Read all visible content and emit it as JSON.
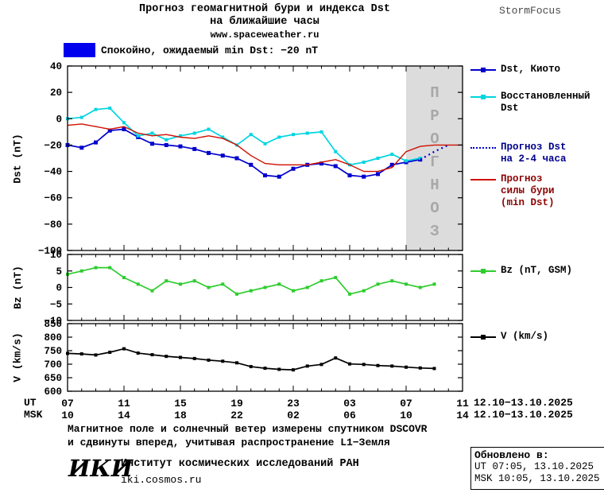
{
  "header": {
    "title_line1": "Прогноз геомагнитной бури и индекса Dst",
    "title_line2": "на ближайшие часы",
    "site": "www.spaceweather.ru",
    "brand": "StormFocus"
  },
  "top_legend": {
    "color": "#0000ee",
    "text": "Спокойно, ожидаемый min Dst: −20 nT"
  },
  "axes": {
    "ut_label": "UT",
    "msk_label": "MSK",
    "ut_ticks": [
      "07",
      "11",
      "15",
      "19",
      "23",
      "03",
      "07",
      "11"
    ],
    "msk_ticks": [
      "10",
      "14",
      "18",
      "22",
      "02",
      "06",
      "10",
      "14"
    ],
    "ut_date": "12.10−13.10.2025",
    "msk_date": "12.10−13.10.2025"
  },
  "chart_data": [
    {
      "type": "line",
      "title": "Прогноз геомагнитной бури и индекса Dst на ближайшие часы",
      "ylabel": "Dst (nT)",
      "ylim": [
        -100,
        40
      ],
      "yticks": [
        40,
        20,
        0,
        -20,
        -40,
        -60,
        -80,
        -100
      ],
      "xlim": [
        0,
        28
      ],
      "xticks": [
        0,
        4,
        8,
        12,
        16,
        20,
        24,
        28
      ],
      "x_unit": "hours, 07UT 12.10.2025 → 11UT 13.10.2025",
      "forecast_band": {
        "x0": 24,
        "x1": 28,
        "label": "ПРОГНОЗ",
        "fill": "#dcdcdc"
      },
      "series": [
        {
          "name": "Dst, Киото",
          "color": "#0000cd",
          "legend_text_color": "#000000",
          "marker": true,
          "msize": 5,
          "x": [
            0,
            1,
            2,
            3,
            4,
            5,
            6,
            7,
            8,
            9,
            10,
            11,
            12,
            13,
            14,
            15,
            16,
            17,
            18,
            19,
            20,
            21,
            22,
            23,
            24,
            25
          ],
          "values": [
            -20,
            -22,
            -18,
            -9,
            -8,
            -14,
            -19,
            -20,
            -21,
            -23,
            -26,
            -28,
            -30,
            -35,
            -43,
            -44,
            -38,
            -35,
            -34,
            -36,
            -43,
            -44,
            -42,
            -35,
            -33,
            -31
          ]
        },
        {
          "name": "Восстановленный Dst",
          "color": "#00d5e0",
          "legend_text_color": "#000000",
          "marker": true,
          "msize": 4,
          "x": [
            0,
            1,
            2,
            3,
            4,
            5,
            6,
            7,
            8,
            9,
            10,
            11,
            12,
            13,
            14,
            15,
            16,
            17,
            18,
            19,
            20,
            21,
            22,
            23,
            24,
            25
          ],
          "values": [
            0,
            1,
            7,
            8,
            -3,
            -13,
            -11,
            -16,
            -13,
            -11,
            -8,
            -14,
            -20,
            -12,
            -19,
            -14,
            -12,
            -11,
            -10,
            -25,
            -35,
            -33,
            -30,
            -27,
            -32,
            -30
          ]
        },
        {
          "name": "Прогноз Dst на 2-4 часа",
          "color": "#0000cd",
          "legend_text_color": "#00008b",
          "dash": "2 4",
          "width": 2.2,
          "x": [
            25,
            26,
            27
          ],
          "values": [
            -31,
            -25,
            -20
          ]
        },
        {
          "name": "Прогноз силы бури (min Dst)",
          "color": "#d01000",
          "legend_text_color": "#8b0000",
          "width": 1.4,
          "x": [
            0,
            1,
            2,
            3,
            4,
            5,
            6,
            7,
            8,
            9,
            10,
            11,
            12,
            13,
            14,
            15,
            16,
            17,
            18,
            19,
            20,
            21,
            22,
            23,
            24,
            25,
            26,
            27,
            28
          ],
          "values": [
            -5,
            -4,
            -6,
            -8,
            -6,
            -11,
            -13,
            -12,
            -14,
            -15,
            -13,
            -15,
            -20,
            -28,
            -34,
            -35,
            -35,
            -35,
            -33,
            -31,
            -35,
            -40,
            -40,
            -37,
            -25,
            -21,
            -20,
            -20,
            -20
          ]
        }
      ]
    },
    {
      "type": "line",
      "ylabel": "Bz (nT)",
      "ylim": [
        -10,
        10
      ],
      "yticks": [
        10,
        5,
        0,
        -5,
        -10
      ],
      "xlim": [
        0,
        28
      ],
      "xticks": [
        0,
        4,
        8,
        12,
        16,
        20,
        24,
        28
      ],
      "series": [
        {
          "name": "Bz (nT, GSM)",
          "color": "#2ecc2e",
          "legend_text_color": "#000000",
          "marker": true,
          "msize": 4,
          "x": [
            0,
            1,
            2,
            3,
            4,
            5,
            6,
            7,
            8,
            9,
            10,
            11,
            12,
            13,
            14,
            15,
            16,
            17,
            18,
            19,
            20,
            21,
            22,
            23,
            24,
            25,
            26
          ],
          "values": [
            4,
            5,
            6,
            6,
            3,
            1,
            -1,
            2,
            1,
            2,
            0,
            1,
            -2,
            -1,
            0,
            1,
            -1,
            0,
            2,
            3,
            -2,
            -1,
            1,
            2,
            1,
            0,
            1
          ]
        }
      ]
    },
    {
      "type": "line",
      "ylabel": "V (km/s)",
      "ylim": [
        600,
        850
      ],
      "yticks": [
        850,
        800,
        750,
        700,
        650,
        600
      ],
      "xlim": [
        0,
        28
      ],
      "xticks": [
        0,
        4,
        8,
        12,
        16,
        20,
        24,
        28
      ],
      "series": [
        {
          "name": "V (km/s)",
          "color": "#000000",
          "legend_text_color": "#000000",
          "marker": true,
          "msize": 4,
          "x": [
            0,
            1,
            2,
            3,
            4,
            5,
            6,
            7,
            8,
            9,
            10,
            11,
            12,
            13,
            14,
            15,
            16,
            17,
            18,
            19,
            20,
            21,
            22,
            23,
            24,
            25,
            26
          ],
          "values": [
            740,
            738,
            734,
            744,
            757,
            741,
            735,
            729,
            725,
            721,
            715,
            711,
            705,
            691,
            685,
            681,
            679,
            693,
            699,
            723,
            701,
            699,
            695,
            693,
            689,
            686,
            684
          ]
        }
      ]
    }
  ],
  "footer": {
    "note_line1": "Магнитное поле и солнечный ветер измерены спутником DSCOVR",
    "note_line2": "и сдвинуты вперед, учитывая распространение L1−Земля",
    "updated_label": "Обновлено в:",
    "updated_ut": "UT  07:05, 13.10.2025",
    "updated_msk": "MSK 10:05, 13.10.2025",
    "logo": "ИКИ",
    "institute": "Институт космических исследований РАН",
    "site": "iki.cosmos.ru"
  }
}
